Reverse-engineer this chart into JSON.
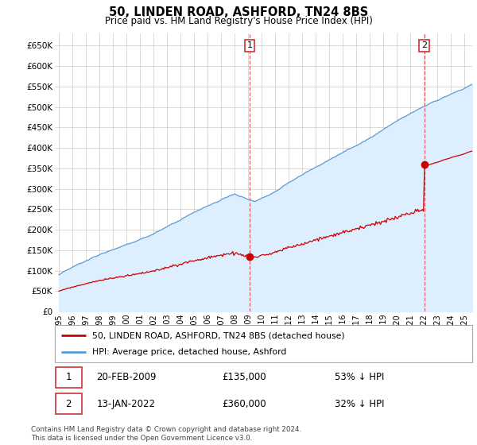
{
  "title": "50, LINDEN ROAD, ASHFORD, TN24 8BS",
  "subtitle": "Price paid vs. HM Land Registry's House Price Index (HPI)",
  "yticks": [
    0,
    50000,
    100000,
    150000,
    200000,
    250000,
    300000,
    350000,
    400000,
    450000,
    500000,
    550000,
    600000,
    650000
  ],
  "ytick_labels": [
    "£0",
    "£50K",
    "£100K",
    "£150K",
    "£200K",
    "£250K",
    "£300K",
    "£350K",
    "£400K",
    "£450K",
    "£500K",
    "£550K",
    "£600K",
    "£650K"
  ],
  "ylim": [
    0,
    680000
  ],
  "legend_entry1": "50, LINDEN ROAD, ASHFORD, TN24 8BS (detached house)",
  "legend_entry2": "HPI: Average price, detached house, Ashford",
  "annotation1_date": "20-FEB-2009",
  "annotation1_price": "£135,000",
  "annotation1_pct": "53% ↓ HPI",
  "annotation2_date": "13-JAN-2022",
  "annotation2_price": "£360,000",
  "annotation2_pct": "32% ↓ HPI",
  "footer": "Contains HM Land Registry data © Crown copyright and database right 2024.\nThis data is licensed under the Open Government Licence v3.0.",
  "line_color_property": "#cc0000",
  "line_color_hpi": "#5b9bd5",
  "hpi_fill_color": "#ddeeff",
  "sale1_year": 2009.13,
  "sale1_price": 135000,
  "sale2_year": 2022.04,
  "sale2_price": 360000,
  "background_color": "#ffffff",
  "grid_color": "#cccccc"
}
